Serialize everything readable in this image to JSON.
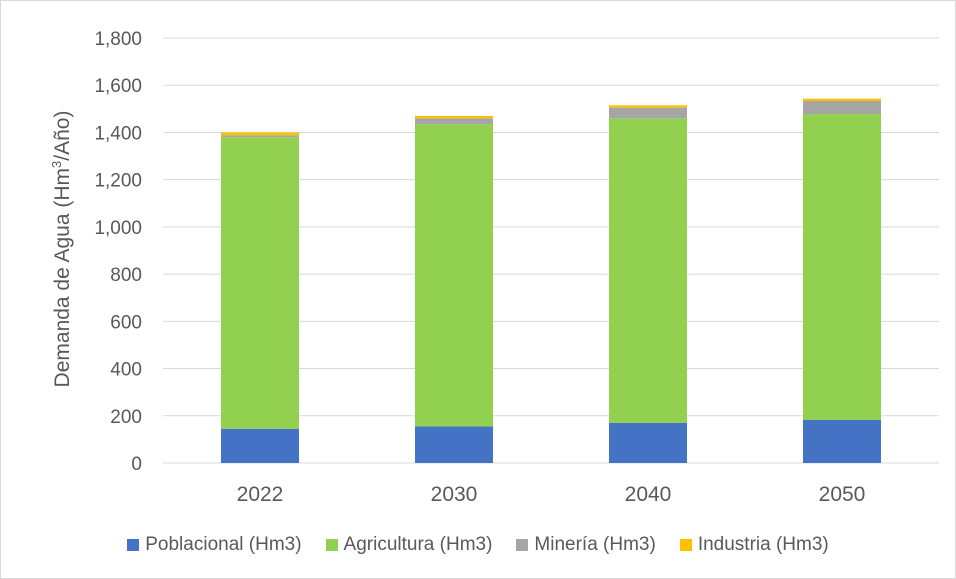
{
  "chart_data": {
    "type": "bar",
    "stacked": true,
    "categories": [
      "2022",
      "2030",
      "2040",
      "2050"
    ],
    "series": [
      {
        "name": "Poblacional (Hm3)",
        "color": "#4472C4",
        "values": [
          145,
          155,
          170,
          183
        ]
      },
      {
        "name": "Agricultura (Hm3)",
        "color": "#92D050",
        "values": [
          1235,
          1280,
          1290,
          1295
        ]
      },
      {
        "name": "Minería (Hm3)",
        "color": "#A5A5A5",
        "values": [
          8,
          25,
          45,
          55
        ]
      },
      {
        "name": "Industria (Hm3)",
        "color": "#FFC000",
        "values": [
          12,
          10,
          10,
          10
        ]
      }
    ],
    "ylabel_main": "Demanda de Agua (Hm",
    "ylabel_sup": "3",
    "ylabel_end": "/Año)",
    "ylim": [
      0,
      1800
    ],
    "yticks": [
      "0",
      "200",
      "400",
      "600",
      "800",
      "1,000",
      "1,200",
      "1,400",
      "1,600",
      "1,800"
    ],
    "grid": true,
    "legend_position": "bottom"
  }
}
